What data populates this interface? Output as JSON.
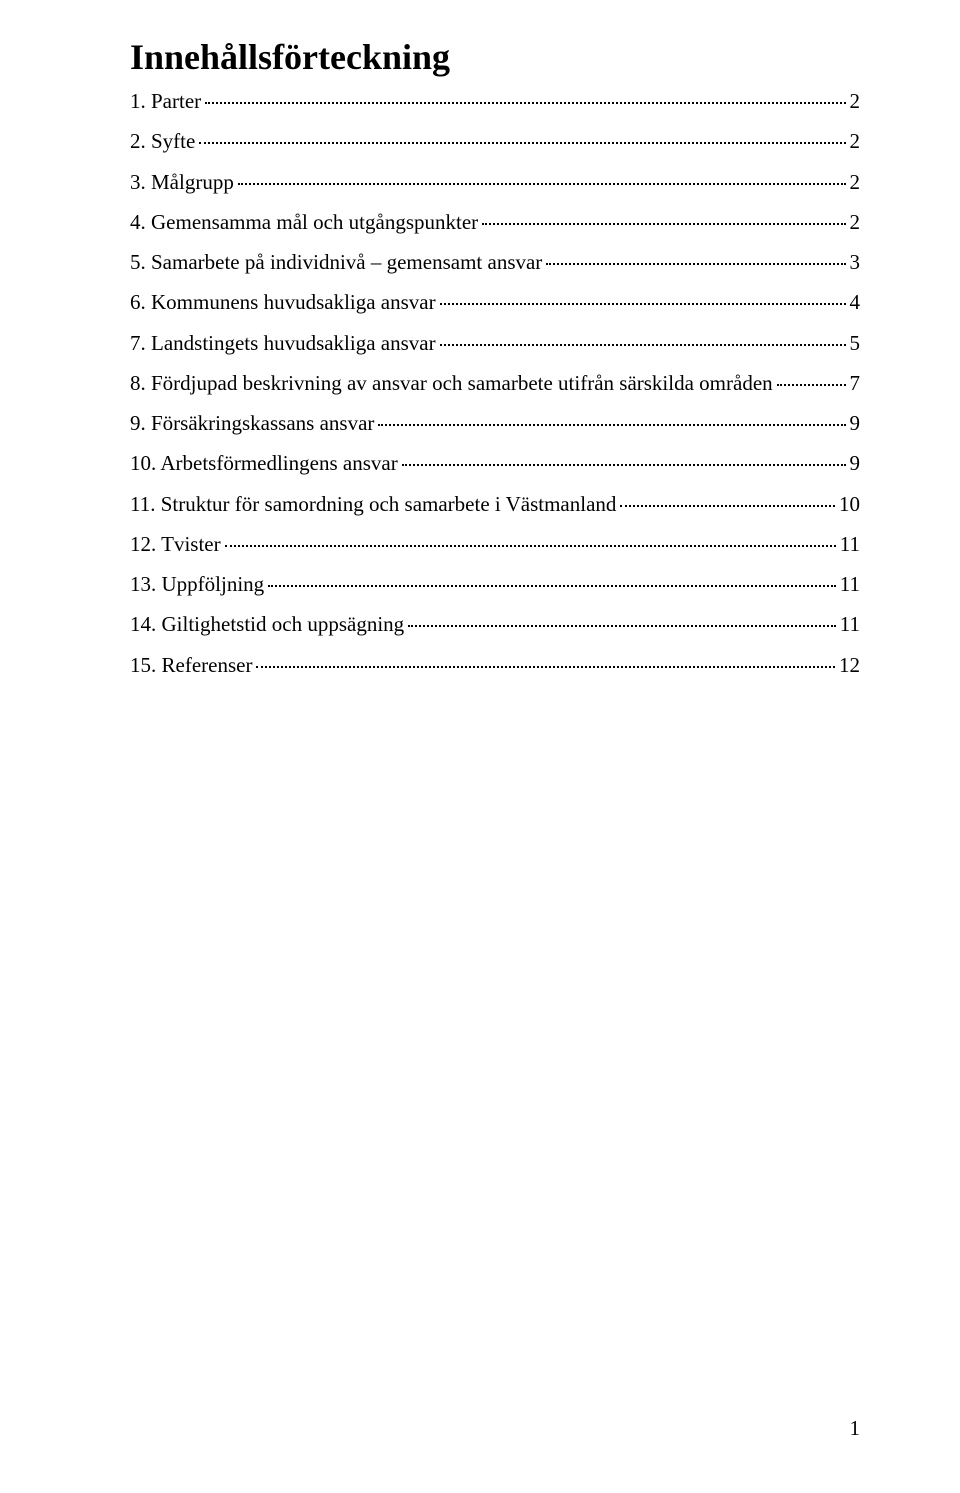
{
  "title": "Innehållsförteckning",
  "toc": [
    {
      "label": "1. Parter",
      "page": "2"
    },
    {
      "label": "2. Syfte",
      "page": "2"
    },
    {
      "label": "3. Målgrupp",
      "page": "2"
    },
    {
      "label": "4. Gemensamma mål och utgångspunkter",
      "page": "2"
    },
    {
      "label": "5. Samarbete på individnivå – gemensamt ansvar",
      "page": "3"
    },
    {
      "label": "6. Kommunens huvudsakliga ansvar",
      "page": "4"
    },
    {
      "label": "7. Landstingets huvudsakliga ansvar",
      "page": "5"
    },
    {
      "label": "8. Fördjupad beskrivning av ansvar och samarbete utifrån särskilda områden",
      "page": "7"
    },
    {
      "label": "9. Försäkringskassans ansvar",
      "page": "9"
    },
    {
      "label": "10. Arbetsförmedlingens ansvar",
      "page": "9"
    },
    {
      "label": "11. Struktur för samordning och samarbete i Västmanland",
      "page": "10"
    },
    {
      "label": "12. Tvister",
      "page": "11"
    },
    {
      "label": "13. Uppföljning",
      "page": "11"
    },
    {
      "label": "14. Giltighetstid och uppsägning",
      "page": "11"
    },
    {
      "label": "15. Referenser",
      "page": "12"
    }
  ],
  "page_number": "1"
}
